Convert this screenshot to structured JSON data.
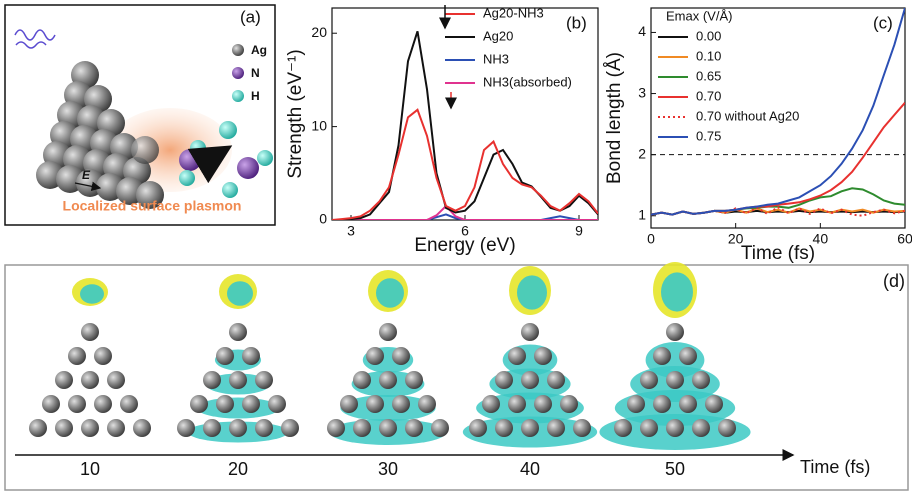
{
  "panel_a": {
    "label": "(a)",
    "legend": [
      "Ag",
      "N",
      "H"
    ],
    "field_label": "E",
    "caption": "Localized surface plasmon"
  },
  "chart_data": [
    {
      "type": "line",
      "panel_label": "(b)",
      "x_label": "Energy (eV)",
      "y_label": "Strength (eV⁻¹)",
      "xlim": [
        2.5,
        9.5
      ],
      "ylim": [
        0,
        22.7
      ],
      "xticks": [
        3,
        6,
        9
      ],
      "yticks": [
        0,
        10,
        20
      ],
      "x": [
        2.5,
        2.75,
        3,
        3.25,
        3.5,
        3.75,
        4,
        4.25,
        4.5,
        4.75,
        5,
        5.25,
        5.5,
        5.75,
        6,
        6.25,
        6.5,
        6.75,
        7,
        7.25,
        7.5,
        7.75,
        8,
        8.25,
        8.5,
        8.75,
        9,
        9.25,
        9.5
      ],
      "series": [
        {
          "name": "Ag20-NH3",
          "color": "#e8312f",
          "values": [
            0,
            0.1,
            0.2,
            0.4,
            1,
            2,
            3.5,
            7,
            11,
            11.8,
            9,
            4.5,
            1.5,
            1,
            1.5,
            3.5,
            7.5,
            8.4,
            6,
            4.5,
            3.8,
            3.5,
            2.6,
            1.5,
            1,
            1.8,
            2.8,
            2,
            0.7
          ]
        },
        {
          "name": "Ag20",
          "color": "#111111",
          "values": [
            0,
            0,
            0.1,
            0.2,
            0.6,
            1.8,
            3,
            8,
            17,
            20.2,
            14,
            5,
            1.3,
            0.8,
            1,
            2,
            4.5,
            7,
            7.5,
            6,
            4,
            3.6,
            2.5,
            1.3,
            1,
            1.5,
            2.6,
            1.8,
            0.6
          ]
        },
        {
          "name": "NH3",
          "color": "#2b4fb4",
          "values": [
            0,
            0,
            0,
            0,
            0,
            0,
            0,
            0,
            0,
            0,
            0,
            0.3,
            0.6,
            0.2,
            0,
            0,
            0,
            0,
            0,
            0,
            0,
            0,
            0,
            0.2,
            0.4,
            0.2,
            0,
            0,
            0
          ]
        },
        {
          "name": "NH3(absorbed)",
          "color": "#e0338f",
          "values": [
            0,
            0,
            0,
            0,
            0,
            0,
            0,
            0,
            0,
            0,
            0,
            0.5,
            1.5,
            0.4,
            0,
            0,
            0,
            0,
            0,
            0,
            0,
            0,
            0,
            0,
            0,
            0,
            0,
            0,
            0
          ]
        }
      ]
    },
    {
      "type": "line",
      "panel_label": "(c)",
      "x_label": "Time (fs)",
      "y_label": "Bond length (Å)",
      "legend_title": "Emax (V/Å)",
      "xlim": [
        0,
        60
      ],
      "ylim": [
        0.8,
        4.4
      ],
      "xticks": [
        0,
        20,
        40,
        60
      ],
      "yticks": [
        1,
        2,
        3,
        4
      ],
      "reference_line": 2,
      "x": [
        0,
        2.5,
        5,
        7.5,
        10,
        12.5,
        15,
        17.5,
        20,
        22.5,
        25,
        27.5,
        30,
        32.5,
        35,
        37.5,
        40,
        42.5,
        45,
        47.5,
        50,
        52.5,
        55,
        57.5,
        60
      ],
      "series": [
        {
          "name": "0.00",
          "color": "#111111",
          "dash": "solid",
          "values": [
            1.02,
            1.05,
            1.02,
            1.07,
            1.03,
            1.05,
            1.08,
            1.05,
            1.07,
            1.06,
            1.08,
            1.06,
            1.07,
            1.06,
            1.08,
            1.06,
            1.07,
            1.06,
            1.07,
            1.06,
            1.07,
            1.06,
            1.07,
            1.06,
            1.07
          ]
        },
        {
          "name": "0.10",
          "color": "#f08a24",
          "dash": "solid",
          "values": [
            1.02,
            1.05,
            1.02,
            1.07,
            1.03,
            1.05,
            1.08,
            1.05,
            1.1,
            1.05,
            1.12,
            1.06,
            1.1,
            1.05,
            1.12,
            1.07,
            1.1,
            1.05,
            1.1,
            1.07,
            1.1,
            1.05,
            1.1,
            1.07,
            1.08
          ]
        },
        {
          "name": "0.65",
          "color": "#2e8b2e",
          "dash": "solid",
          "values": [
            1.02,
            1.05,
            1.02,
            1.07,
            1.03,
            1.05,
            1.08,
            1.08,
            1.1,
            1.12,
            1.13,
            1.15,
            1.15,
            1.13,
            1.18,
            1.25,
            1.3,
            1.32,
            1.4,
            1.45,
            1.43,
            1.35,
            1.25,
            1.2,
            1.18
          ]
        },
        {
          "name": "0.70",
          "color": "#e8312f",
          "dash": "solid",
          "values": [
            1.02,
            1.05,
            1.02,
            1.07,
            1.03,
            1.05,
            1.08,
            1.08,
            1.1,
            1.13,
            1.15,
            1.15,
            1.18,
            1.2,
            1.22,
            1.27,
            1.33,
            1.42,
            1.55,
            1.72,
            1.95,
            2.2,
            2.45,
            2.65,
            2.85
          ]
        },
        {
          "name": "0.70  without Ag20",
          "color": "#e8312f",
          "dash": "dotted",
          "values": [
            1.02,
            1.05,
            1.02,
            1.07,
            1.03,
            1.05,
            1.08,
            1.05,
            1.12,
            1.04,
            1.13,
            1.03,
            1.14,
            1.04,
            1.12,
            1.03,
            1.12,
            1.04,
            1.1,
            1.02,
            1.0,
            1.06,
            1.1,
            1.04,
            1.08
          ]
        },
        {
          "name": "0.75",
          "color": "#2b4fb4",
          "dash": "solid",
          "values": [
            1.02,
            1.05,
            1.02,
            1.07,
            1.03,
            1.05,
            1.08,
            1.08,
            1.1,
            1.13,
            1.15,
            1.18,
            1.2,
            1.25,
            1.3,
            1.4,
            1.5,
            1.65,
            1.85,
            2.1,
            2.4,
            2.8,
            3.3,
            3.8,
            4.4
          ]
        }
      ]
    }
  ],
  "panel_d": {
    "label": "(d)",
    "times": [
      10,
      20,
      30,
      40,
      50
    ],
    "axis_label": "Time (fs)"
  }
}
